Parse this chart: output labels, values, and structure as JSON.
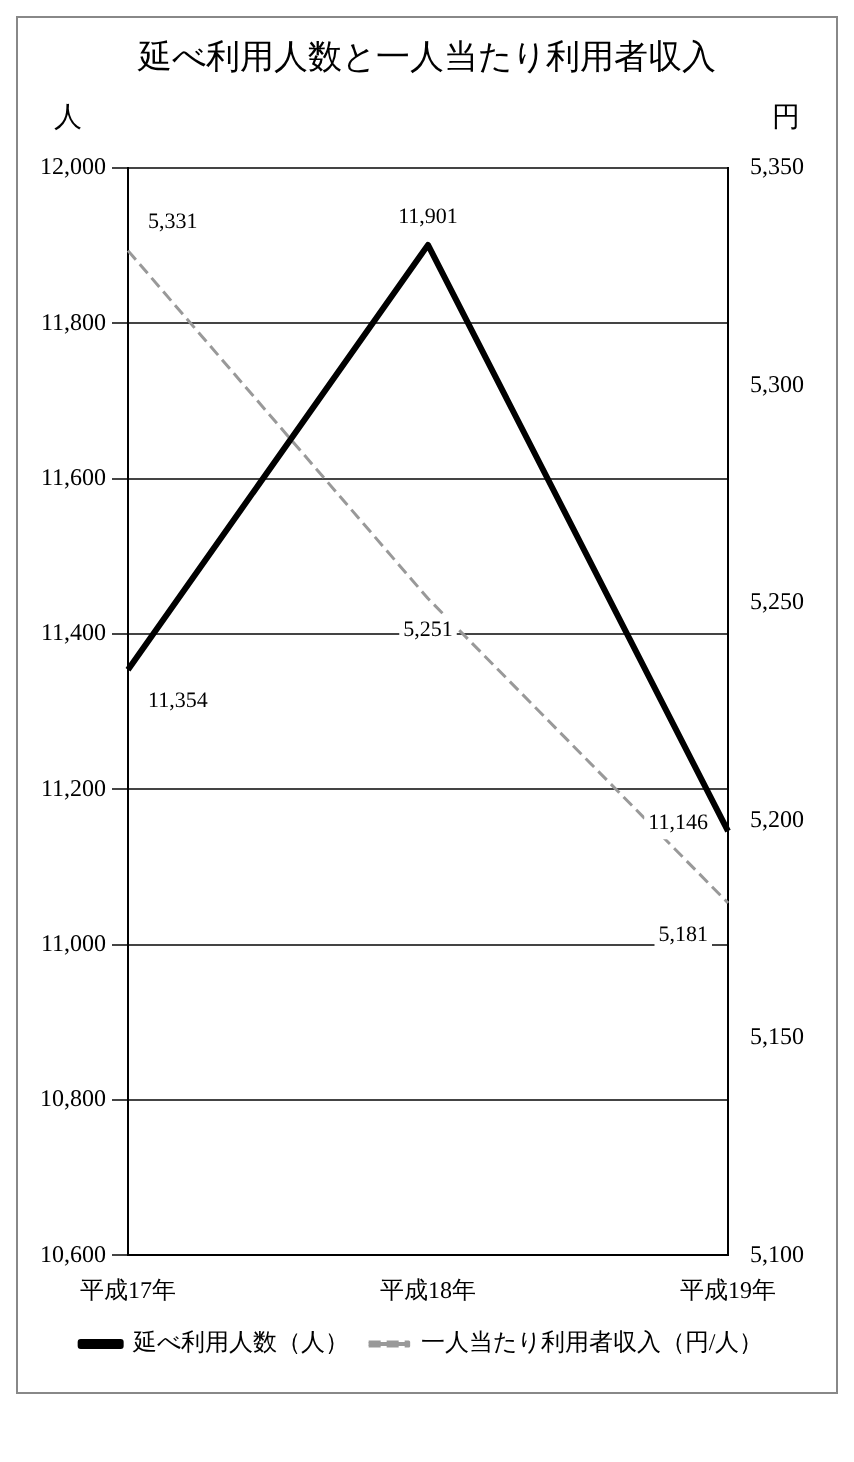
{
  "chart_data": {
    "type": "line",
    "title": "延べ利用人数と一人当たり利用者収入",
    "ylabel": "人",
    "y2label": "円",
    "categories": [
      "平成17年",
      "平成18年",
      "平成19年"
    ],
    "series": [
      {
        "name": "延べ利用人数（人）",
        "color": "#000000",
        "values": [
          11354,
          11901,
          11146
        ],
        "value_labels": [
          "11,354",
          "11,901",
          "11,146"
        ],
        "line_style": "solid"
      },
      {
        "name": "一人当たり利用者収入（円/人）",
        "color": "#999999",
        "values": [
          5331,
          5251,
          5181
        ],
        "value_labels": [
          "5,331",
          "5,251",
          "5,181"
        ],
        "axis": "y2",
        "line_style": "dashed"
      }
    ],
    "ylim": [
      10600,
      12000
    ],
    "yticks": [
      {
        "value": 10600,
        "label": "10,600"
      },
      {
        "value": 10800,
        "label": "10,800"
      },
      {
        "value": 11000,
        "label": "11,000"
      },
      {
        "value": 11200,
        "label": "11,200"
      },
      {
        "value": 11400,
        "label": "11,400"
      },
      {
        "value": 11600,
        "label": "11,600"
      },
      {
        "value": 11800,
        "label": "11,800"
      },
      {
        "value": 12000,
        "label": "12,000"
      }
    ],
    "y2lim": [
      5100,
      5350
    ],
    "y2ticks": [
      {
        "value": 5100,
        "label": "5,100"
      },
      {
        "value": 5150,
        "label": "5,150"
      },
      {
        "value": 5200,
        "label": "5,200"
      },
      {
        "value": 5250,
        "label": "5,250"
      },
      {
        "value": 5300,
        "label": "5,300"
      },
      {
        "value": 5350,
        "label": "5,350"
      }
    ],
    "grid": "y",
    "legend": "bottom",
    "marker": "none"
  }
}
